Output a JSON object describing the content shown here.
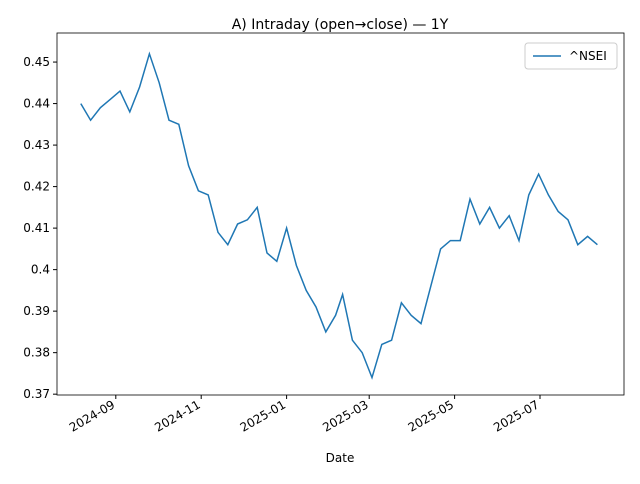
{
  "chart_data": {
    "type": "line",
    "title": "A) Intraday (open→close) — 1Y",
    "x_label": "Date",
    "x": [
      "2024-08-07",
      "2024-08-14",
      "2024-08-21",
      "2024-08-28",
      "2024-09-04",
      "2024-09-11",
      "2024-09-18",
      "2024-09-25",
      "2024-10-02",
      "2024-10-09",
      "2024-10-16",
      "2024-10-23",
      "2024-10-30",
      "2024-11-06",
      "2024-11-13",
      "2024-11-20",
      "2024-11-27",
      "2024-12-04",
      "2024-12-11",
      "2024-12-18",
      "2024-12-25",
      "2025-01-01",
      "2025-01-08",
      "2025-01-15",
      "2025-01-22",
      "2025-01-29",
      "2025-02-05",
      "2025-02-10",
      "2025-02-17",
      "2025-02-24",
      "2025-03-03",
      "2025-03-10",
      "2025-03-17",
      "2025-03-24",
      "2025-03-31",
      "2025-04-07",
      "2025-04-14",
      "2025-04-21",
      "2025-04-28",
      "2025-05-05",
      "2025-05-12",
      "2025-05-19",
      "2025-05-26",
      "2025-06-02",
      "2025-06-09",
      "2025-06-16",
      "2025-06-23",
      "2025-06-30",
      "2025-07-07",
      "2025-07-14",
      "2025-07-21",
      "2025-07-28",
      "2025-08-04",
      "2025-08-11"
    ],
    "series": [
      {
        "name": "^NSEI",
        "color": "#1f77b4",
        "values": [
          0.44,
          0.436,
          0.439,
          0.441,
          0.443,
          0.438,
          0.444,
          0.452,
          0.445,
          0.436,
          0.435,
          0.425,
          0.419,
          0.418,
          0.409,
          0.406,
          0.411,
          0.412,
          0.415,
          0.404,
          0.402,
          0.41,
          0.401,
          0.395,
          0.391,
          0.385,
          0.389,
          0.394,
          0.383,
          0.38,
          0.374,
          0.382,
          0.383,
          0.392,
          0.389,
          0.387,
          0.396,
          0.405,
          0.407,
          0.407,
          0.417,
          0.411,
          0.415,
          0.41,
          0.413,
          0.407,
          0.418,
          0.423,
          0.418,
          0.414,
          0.412,
          0.406,
          0.408,
          0.406
        ]
      }
    ],
    "xlim": [
      "2024-07-21",
      "2025-08-30"
    ],
    "xticks": [
      {
        "value": "2024-09-01",
        "label": "2024-09"
      },
      {
        "value": "2024-11-01",
        "label": "2024-11"
      },
      {
        "value": "2025-01-01",
        "label": "2025-01"
      },
      {
        "value": "2025-03-01",
        "label": "2025-03"
      },
      {
        "value": "2025-05-01",
        "label": "2025-05"
      },
      {
        "value": "2025-07-01",
        "label": "2025-07"
      }
    ],
    "ylim": [
      0.3698,
      0.457
    ],
    "yticks": [
      0.37,
      0.38,
      0.39,
      0.4,
      0.41,
      0.42,
      0.43,
      0.44,
      0.45
    ],
    "legend": "upper right"
  }
}
